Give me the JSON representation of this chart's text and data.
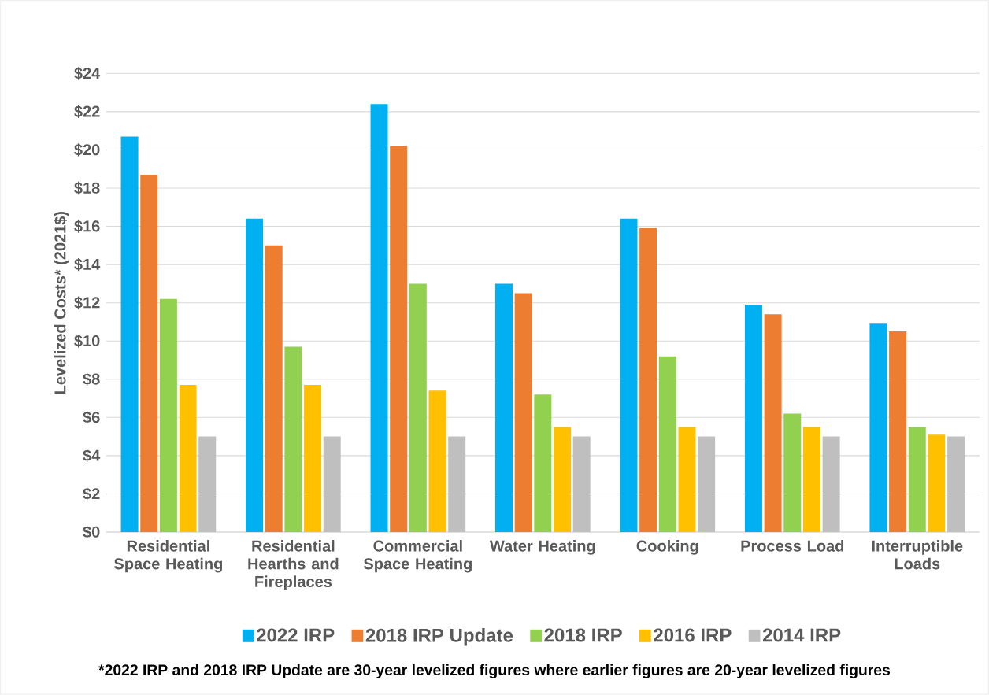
{
  "chart_data": {
    "type": "bar",
    "categories": [
      "Residential Space Heating",
      "Residential Hearths and Fireplaces",
      "Commercial Space Heating",
      "Water Heating",
      "Cooking",
      "Process Load",
      "Interruptible Loads"
    ],
    "ylabel": "Levelized Costs* (2021$)",
    "series": [
      {
        "name": "2022 IRP",
        "color": "#00b0f0",
        "values": [
          20.7,
          16.4,
          22.4,
          13.0,
          16.4,
          11.9,
          10.9
        ]
      },
      {
        "name": "2018 IRP Update",
        "color": "#ed7d31",
        "values": [
          18.7,
          15.0,
          20.2,
          12.5,
          15.9,
          11.4,
          10.5
        ]
      },
      {
        "name": "2018 IRP",
        "color": "#92d050",
        "values": [
          12.2,
          9.7,
          13.0,
          7.2,
          9.2,
          6.2,
          5.5
        ]
      },
      {
        "name": "2016 IRP",
        "color": "#ffc000",
        "values": [
          7.7,
          7.7,
          7.4,
          5.5,
          5.5,
          5.5,
          5.1
        ]
      },
      {
        "name": "2014 IRP",
        "color": "#bfbfbf",
        "values": [
          5.0,
          5.0,
          5.0,
          5.0,
          5.0,
          5.0,
          5.0
        ]
      }
    ],
    "ylim": [
      0,
      24
    ],
    "yticks": [
      {
        "value": 0,
        "label": "$0"
      },
      {
        "value": 2,
        "label": "$2"
      },
      {
        "value": 4,
        "label": "$4"
      },
      {
        "value": 6,
        "label": "$6"
      },
      {
        "value": 8,
        "label": "$8"
      },
      {
        "value": 10,
        "label": "$10"
      },
      {
        "value": 12,
        "label": "$12"
      },
      {
        "value": 14,
        "label": "$14"
      },
      {
        "value": 16,
        "label": "$16"
      },
      {
        "value": 18,
        "label": "$18"
      },
      {
        "value": 20,
        "label": "$20"
      },
      {
        "value": 22,
        "label": "$22"
      },
      {
        "value": 24,
        "label": "$24"
      }
    ],
    "grid": "y",
    "legend": "bottom",
    "annotations": [
      "*2022 IRP and 2018 IRP Update are 30-year levelized figures where earlier figures are 20-year levelized figures"
    ]
  }
}
